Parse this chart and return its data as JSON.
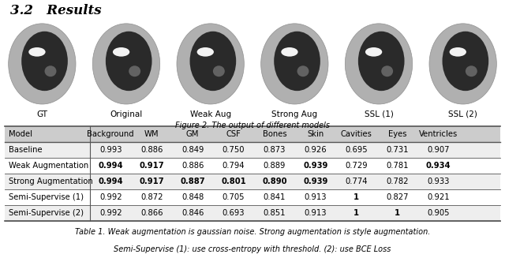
{
  "title": "3.2   Results",
  "figure_caption": "Figure 2. The output of different models",
  "image_labels": [
    "GT",
    "Original",
    "Weak Aug",
    "Strong Aug",
    "SSL (1)",
    "SSL (2)"
  ],
  "table_caption_line1": "Table 1. Weak augmentation is gaussian noise. Strong augmentation is style augmentation.",
  "table_caption_line2": "Semi-Supervise (1): use cross-entropy with threshold. (2): use BCE Loss",
  "columns": [
    "Model",
    "Background",
    "WM",
    "GM",
    "CSF",
    "Bones",
    "Skin",
    "Cavities",
    "Eyes",
    "Ventricles"
  ],
  "rows": [
    {
      "name": "Baseline",
      "values": [
        "0.993",
        "0.886",
        "0.849",
        "0.750",
        "0.873",
        "0.926",
        "0.695",
        "0.731",
        "0.907"
      ],
      "bold": [
        false,
        false,
        false,
        false,
        false,
        false,
        false,
        false,
        false
      ]
    },
    {
      "name": "Weak Augmentation",
      "values": [
        "0.994",
        "0.917",
        "0.886",
        "0.794",
        "0.889",
        "0.939",
        "0.729",
        "0.781",
        "0.934"
      ],
      "bold": [
        true,
        true,
        false,
        false,
        false,
        true,
        false,
        false,
        true
      ]
    },
    {
      "name": "Strong Augmentation",
      "values": [
        "0.994",
        "0.917",
        "0.887",
        "0.801",
        "0.890",
        "0.939",
        "0.774",
        "0.782",
        "0.933"
      ],
      "bold": [
        true,
        true,
        true,
        true,
        true,
        true,
        false,
        false,
        false
      ]
    },
    {
      "name": "Semi-Supervise (1)",
      "values": [
        "0.992",
        "0.872",
        "0.848",
        "0.705",
        "0.841",
        "0.913",
        "1",
        "0.827",
        "0.921"
      ],
      "bold": [
        false,
        false,
        false,
        false,
        false,
        false,
        true,
        false,
        false
      ]
    },
    {
      "name": "Semi-Supervise (2)",
      "values": [
        "0.992",
        "0.866",
        "0.846",
        "0.693",
        "0.851",
        "0.913",
        "1",
        "1",
        "0.905"
      ],
      "bold": [
        false,
        false,
        false,
        false,
        false,
        false,
        true,
        true,
        false
      ]
    }
  ],
  "bg_color": "#ffffff",
  "header_bg": "#cccccc",
  "row_bg_even": "#eeeeee",
  "row_bg_odd": "#ffffff",
  "line_color": "#555555",
  "title_fontsize": 12,
  "table_fontsize": 7.2,
  "caption_fontsize": 7.0,
  "label_fontsize": 7.5
}
